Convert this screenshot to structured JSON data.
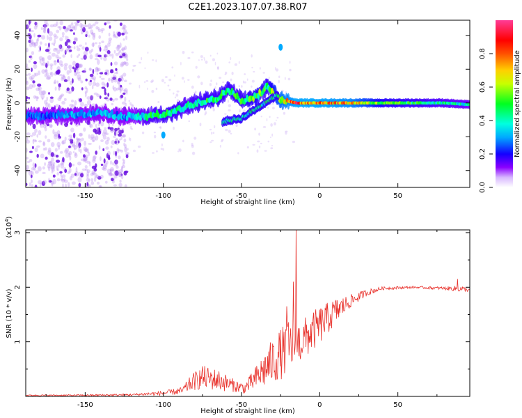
{
  "figure_title": "C2E1.2023.107.07.38.R07",
  "colors": {
    "snr_line": "#e8302a",
    "axis": "#000000",
    "speckle": "#9b4de0",
    "speckle_dark": "#5a00d0"
  },
  "chart_data": [
    {
      "type": "heatmap",
      "title": "C2E1.2023.107.07.38.R07",
      "xlabel": "Height of straight line (km)",
      "ylabel": "Frequency (Hz)",
      "xlim": [
        -188,
        96
      ],
      "ylim": [
        -50,
        49
      ],
      "x_ticks": [
        -150,
        -100,
        -50,
        0,
        50
      ],
      "x_tick_labels": [
        "-150",
        "-100",
        "-50",
        "0",
        "50"
      ],
      "y_ticks": [
        -40,
        -20,
        0,
        20,
        40
      ],
      "y_tick_labels": [
        "-40",
        "-20",
        "0",
        "20",
        "40"
      ],
      "colorbar": {
        "label": "Normalized spectral amplitude",
        "range": [
          0,
          1
        ],
        "ticks": [
          0.0,
          0.2,
          0.4,
          0.6,
          0.8
        ],
        "tick_labels": [
          "0.0",
          "0.2",
          "0.4",
          "0.6",
          "0.8"
        ],
        "colormap": [
          "#ffffff",
          "#8a00ff",
          "#0000ff",
          "#00e5ff",
          "#00ff40",
          "#ffff00",
          "#ff7a00",
          "#ff0000",
          "#ff3c8c"
        ]
      },
      "ridge": [
        {
          "x": -185,
          "freq": -8,
          "amp": 0.25
        },
        {
          "x": -160,
          "freq": -7,
          "amp": 0.3
        },
        {
          "x": -140,
          "freq": -6,
          "amp": 0.35
        },
        {
          "x": -125,
          "freq": -8,
          "amp": 0.3
        },
        {
          "x": -110,
          "freq": -8,
          "amp": 0.45
        },
        {
          "x": -95,
          "freq": -6,
          "amp": 0.5
        },
        {
          "x": -85,
          "freq": -2,
          "amp": 0.45
        },
        {
          "x": -75,
          "freq": 1,
          "amp": 0.5
        },
        {
          "x": -65,
          "freq": 3,
          "amp": 0.5
        },
        {
          "x": -58,
          "freq": 8,
          "amp": 0.5
        },
        {
          "x": -50,
          "freq": 1,
          "amp": 0.5
        },
        {
          "x": -40,
          "freq": 4,
          "amp": 0.55
        },
        {
          "x": -33,
          "freq": 10,
          "amp": 0.5
        },
        {
          "x": -25,
          "freq": 2,
          "amp": 0.75
        },
        {
          "x": -15,
          "freq": 0,
          "amp": 0.85
        },
        {
          "x": 0,
          "freq": 0,
          "amp": 0.85
        },
        {
          "x": 20,
          "freq": 0,
          "amp": 0.8
        },
        {
          "x": 40,
          "freq": 0,
          "amp": 0.55
        },
        {
          "x": 60,
          "freq": 0,
          "amp": 0.5
        },
        {
          "x": 80,
          "freq": 0,
          "amp": 0.45
        },
        {
          "x": 95,
          "freq": -1,
          "amp": 0.4
        }
      ],
      "branch": [
        {
          "x": -62,
          "freq": -11,
          "amp": 0.4
        },
        {
          "x": -50,
          "freq": -9,
          "amp": 0.45
        },
        {
          "x": -40,
          "freq": -3,
          "amp": 0.5
        },
        {
          "x": -32,
          "freq": 2,
          "amp": 0.5
        },
        {
          "x": -26,
          "freq": 5,
          "amp": 0.5
        }
      ],
      "isolated_points": [
        {
          "x": -25,
          "freq": 33,
          "amp": 0.3
        },
        {
          "x": -100,
          "freq": -19,
          "amp": 0.3
        }
      ]
    },
    {
      "type": "line",
      "xlabel": "Height of straight line (km)",
      "ylabel": "SNR (10 * v/v)",
      "y_multiplier_label": "(x10",
      "y_multiplier_exponent": "4",
      "y_multiplier_close": ")",
      "xlim": [
        -188,
        96
      ],
      "ylim": [
        0,
        3.05
      ],
      "x_ticks": [
        -150,
        -100,
        -50,
        0,
        50
      ],
      "x_tick_labels": [
        "-150",
        "-100",
        "-50",
        "0",
        "50"
      ],
      "y_ticks": [
        1,
        2,
        3
      ],
      "y_tick_labels": [
        "1",
        "2",
        "3"
      ],
      "envelope": [
        {
          "x": -188,
          "y": 0.02,
          "amp": 0.01
        },
        {
          "x": -150,
          "y": 0.02,
          "amp": 0.015
        },
        {
          "x": -120,
          "y": 0.03,
          "amp": 0.02
        },
        {
          "x": -100,
          "y": 0.06,
          "amp": 0.04
        },
        {
          "x": -88,
          "y": 0.1,
          "amp": 0.07
        },
        {
          "x": -82,
          "y": 0.25,
          "amp": 0.15
        },
        {
          "x": -75,
          "y": 0.35,
          "amp": 0.22
        },
        {
          "x": -65,
          "y": 0.3,
          "amp": 0.2
        },
        {
          "x": -55,
          "y": 0.2,
          "amp": 0.12
        },
        {
          "x": -48,
          "y": 0.15,
          "amp": 0.1
        },
        {
          "x": -42,
          "y": 0.3,
          "amp": 0.2
        },
        {
          "x": -35,
          "y": 0.5,
          "amp": 0.35
        },
        {
          "x": -28,
          "y": 0.7,
          "amp": 0.45
        },
        {
          "x": -20,
          "y": 0.9,
          "amp": 0.5
        },
        {
          "x": -12,
          "y": 1.0,
          "amp": 0.4
        },
        {
          "x": 0,
          "y": 1.3,
          "amp": 0.35
        },
        {
          "x": 10,
          "y": 1.55,
          "amp": 0.25
        },
        {
          "x": 20,
          "y": 1.75,
          "amp": 0.12
        },
        {
          "x": 30,
          "y": 1.9,
          "amp": 0.06
        },
        {
          "x": 40,
          "y": 1.98,
          "amp": 0.03
        },
        {
          "x": 60,
          "y": 2.0,
          "amp": 0.02
        },
        {
          "x": 80,
          "y": 1.98,
          "amp": 0.03
        },
        {
          "x": 90,
          "y": 1.97,
          "amp": 0.06
        },
        {
          "x": 96,
          "y": 1.95,
          "amp": 0.03
        }
      ],
      "spikes": [
        {
          "x": -15,
          "y": 3.05
        },
        {
          "x": -17,
          "y": 2.1
        },
        {
          "x": -21,
          "y": 1.65
        },
        {
          "x": 88,
          "y": 2.15
        }
      ]
    }
  ]
}
